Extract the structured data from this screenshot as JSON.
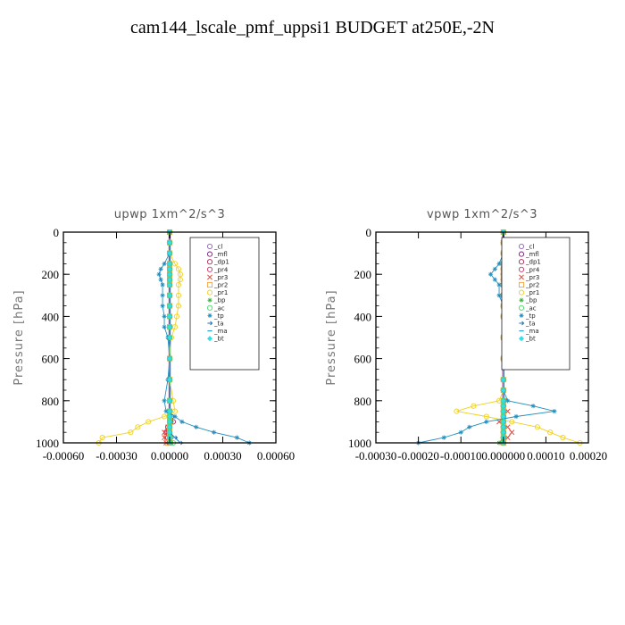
{
  "title": "cam144_lscale_pmf_uppsi1  BUDGET at250E,-2N",
  "chart_data": [
    {
      "type": "line",
      "title": "upwp   1xm^2/s^3",
      "ylabel": "Pressure [hPa]",
      "ylim": [
        1000,
        0
      ],
      "xlim": [
        -0.0006,
        0.0006
      ],
      "y_ticks": [
        0,
        200,
        400,
        600,
        800,
        1000
      ],
      "y_tick_labels": [
        "0",
        "200",
        "400",
        "600",
        "800",
        "1000"
      ],
      "x_ticks": [
        -0.0006,
        -0.0003,
        0.0,
        0.0003,
        0.0006
      ],
      "x_tick_labels": [
        "-0.00060",
        "-0.00030",
        "0.00000",
        "0.00030",
        "0.00060"
      ],
      "legend_position": "top-right",
      "pressure": [
        0,
        50,
        100,
        150,
        175,
        200,
        225,
        250,
        300,
        350,
        400,
        450,
        500,
        600,
        700,
        800,
        850,
        875,
        900,
        925,
        950,
        975,
        1000
      ],
      "series": [
        {
          "name": "_cl",
          "color": "#8b5fbf",
          "marker": "circle",
          "values": [
            0,
            0,
            0,
            0,
            0,
            0,
            0,
            0,
            0,
            0,
            0,
            0,
            0,
            0,
            0,
            0,
            0,
            0,
            0,
            0,
            0,
            0,
            0
          ]
        },
        {
          "name": "_mfl",
          "color": "#7a1f6f",
          "marker": "circle",
          "values": [
            0,
            0,
            0,
            0,
            0,
            0,
            0,
            0,
            0,
            0,
            0,
            0,
            0,
            0,
            0,
            0,
            0,
            0,
            0,
            0,
            0,
            0,
            0
          ]
        },
        {
          "name": "_dp1",
          "color": "#b0245a",
          "marker": "circle",
          "values": [
            0,
            0,
            0,
            0,
            0,
            0,
            0,
            0,
            0,
            0,
            0,
            0,
            0,
            0,
            0,
            0,
            0,
            1e-05,
            2e-05,
            -1e-05,
            -2e-05,
            -1e-05,
            0
          ]
        },
        {
          "name": "_pr4",
          "color": "#d0306a",
          "marker": "circle",
          "values": [
            0,
            0,
            0,
            0,
            0,
            0,
            0,
            0,
            0,
            0,
            0,
            0,
            0,
            0,
            0,
            0,
            0,
            0,
            0,
            0,
            0,
            0,
            0
          ]
        },
        {
          "name": "_pr3",
          "color": "#e64a3a",
          "marker": "cross",
          "values": [
            0,
            0,
            0,
            0,
            0,
            0,
            0,
            0,
            0,
            0,
            0,
            0,
            0,
            0,
            0,
            0,
            0,
            0,
            0,
            -1e-05,
            -3e-05,
            -3e-05,
            -2e-05
          ]
        },
        {
          "name": "_pr2",
          "color": "#f4a340",
          "marker": "square",
          "values": [
            0,
            0,
            0,
            0,
            0,
            0,
            0,
            0,
            0,
            0,
            0,
            0,
            0,
            0,
            0,
            0,
            0,
            0,
            0,
            0,
            0,
            0,
            -1e-05
          ]
        },
        {
          "name": "_pr1",
          "color": "#f0d020",
          "marker": "circle",
          "values": [
            0,
            0,
            0,
            3e-05,
            5e-05,
            6e-05,
            6e-05,
            5e-05,
            5e-05,
            5e-05,
            4e-05,
            3e-05,
            1e-05,
            0,
            0,
            2e-05,
            3e-05,
            -3e-05,
            -0.00012,
            -0.00018,
            -0.00022,
            -0.00038,
            -0.0004
          ]
        },
        {
          "name": "_bp",
          "color": "#3fb03f",
          "marker": "star",
          "values": [
            0,
            0,
            0,
            0,
            0,
            0,
            0,
            0,
            0,
            0,
            0,
            0,
            0,
            0,
            0,
            0,
            0,
            0,
            1e-05,
            0,
            0,
            1e-05,
            1e-05
          ]
        },
        {
          "name": "_ac",
          "color": "#40e060",
          "marker": "circle",
          "values": [
            0,
            0,
            0,
            0,
            0,
            0,
            0,
            0,
            0,
            0,
            0,
            0,
            0,
            0,
            0,
            0,
            0,
            0,
            0,
            0,
            0,
            0,
            2e-05
          ]
        },
        {
          "name": "_tp",
          "color": "#1f8fc0",
          "marker": "star",
          "values": [
            0,
            0,
            0,
            -3e-05,
            -5e-05,
            -6e-05,
            -5e-05,
            -4e-05,
            -4e-05,
            -4e-05,
            -3e-05,
            -3e-05,
            -1e-05,
            0,
            -1e-05,
            -3e-05,
            -2e-05,
            3e-05,
            7e-05,
            0.00015,
            0.00025,
            0.00038,
            0.00045
          ]
        },
        {
          "name": "_ta",
          "color": "#1a6fb0",
          "marker": "arrow",
          "values": [
            0,
            0,
            0,
            0,
            0,
            0,
            0,
            0,
            0,
            0,
            0,
            0,
            0,
            0,
            0,
            0,
            0,
            0,
            0,
            0,
            0,
            3e-05,
            6e-05
          ]
        },
        {
          "name": "_ma",
          "color": "#2aa0d0",
          "marker": "dash",
          "values": [
            0,
            0,
            0,
            0,
            0,
            0,
            0,
            0,
            0,
            0,
            0,
            0,
            0,
            0,
            0,
            0,
            0,
            0,
            0,
            0,
            0,
            0,
            0
          ]
        },
        {
          "name": "_bt",
          "color": "#30e0e8",
          "marker": "diamond",
          "values": [
            0,
            0,
            0,
            0,
            0,
            0,
            0,
            0,
            0,
            0,
            0,
            0,
            0,
            0,
            0,
            0,
            0,
            0,
            0,
            0,
            0,
            0,
            0
          ]
        }
      ]
    },
    {
      "type": "line",
      "title": "vpwp   1xm^2/s^3",
      "ylabel": "Pressure [hPa]",
      "ylim": [
        1000,
        0
      ],
      "xlim": [
        -0.0003,
        0.0002
      ],
      "y_ticks": [
        0,
        200,
        400,
        600,
        800,
        1000
      ],
      "y_tick_labels": [
        "0",
        "200",
        "400",
        "600",
        "800",
        "1000"
      ],
      "x_ticks": [
        -0.0003,
        -0.0002,
        -0.0001,
        0.0,
        0.0001,
        0.0002
      ],
      "x_tick_labels": [
        "-0.00030",
        "-0.00020",
        "-0.00010",
        "0.000000",
        "0.00010",
        "0.00020"
      ],
      "legend_position": "top-right",
      "pressure": [
        0,
        50,
        100,
        150,
        175,
        200,
        225,
        250,
        300,
        350,
        400,
        500,
        600,
        700,
        750,
        800,
        825,
        850,
        875,
        900,
        925,
        950,
        975,
        1000
      ],
      "series": [
        {
          "name": "_cl",
          "color": "#8b5fbf",
          "marker": "circle",
          "values": [
            0,
            0,
            0,
            0,
            0,
            0,
            0,
            0,
            0,
            0,
            0,
            0,
            0,
            0,
            0,
            0,
            0,
            0,
            0,
            0,
            0,
            0,
            0,
            0
          ]
        },
        {
          "name": "_mfl",
          "color": "#7a1f6f",
          "marker": "circle",
          "values": [
            0,
            0,
            0,
            0,
            0,
            0,
            0,
            0,
            0,
            0,
            0,
            0,
            0,
            0,
            0,
            0,
            0,
            0,
            0,
            0,
            0,
            0,
            0,
            0
          ]
        },
        {
          "name": "_dp1",
          "color": "#b0245a",
          "marker": "circle",
          "values": [
            0,
            0,
            0,
            0,
            0,
            0,
            0,
            0,
            0,
            0,
            0,
            0,
            0,
            0,
            0,
            0,
            0,
            0,
            0,
            0,
            0,
            0,
            0,
            0
          ]
        },
        {
          "name": "_pr4",
          "color": "#d0306a",
          "marker": "circle",
          "values": [
            0,
            0,
            0,
            0,
            0,
            0,
            0,
            0,
            0,
            0,
            0,
            0,
            0,
            0,
            0,
            0,
            0,
            0,
            0,
            0,
            0,
            0,
            0,
            0
          ]
        },
        {
          "name": "_pr3",
          "color": "#e64a3a",
          "marker": "cross",
          "values": [
            0,
            0,
            0,
            0,
            0,
            0,
            0,
            0,
            0,
            0,
            0,
            0,
            0,
            0,
            0,
            0,
            0,
            1e-05,
            0,
            -1e-05,
            1e-05,
            2e-05,
            1e-05,
            0
          ]
        },
        {
          "name": "_pr2",
          "color": "#f4a340",
          "marker": "square",
          "values": [
            0,
            0,
            0,
            0,
            0,
            0,
            0,
            0,
            0,
            0,
            0,
            0,
            0,
            0,
            0,
            0,
            0,
            0,
            0,
            0,
            0,
            0,
            0,
            0
          ]
        },
        {
          "name": "_pr1",
          "color": "#f0d020",
          "marker": "circle",
          "values": [
            0,
            0,
            0,
            1e-05,
            2e-05,
            3e-05,
            2e-05,
            1e-05,
            1e-05,
            0,
            0,
            0,
            0,
            0,
            0,
            -1e-05,
            -7e-05,
            -0.00011,
            -4e-05,
            2e-05,
            8e-05,
            0.00011,
            0.00014,
            0.00018
          ]
        },
        {
          "name": "_bp",
          "color": "#3fb03f",
          "marker": "star",
          "values": [
            0,
            0,
            0,
            0,
            0,
            0,
            0,
            0,
            0,
            0,
            0,
            0,
            0,
            0,
            0,
            0,
            0,
            0,
            0,
            0,
            0,
            0,
            0,
            -1e-05
          ]
        },
        {
          "name": "_ac",
          "color": "#40e060",
          "marker": "circle",
          "values": [
            0,
            0,
            0,
            0,
            0,
            0,
            0,
            0,
            0,
            0,
            0,
            0,
            0,
            0,
            0,
            0,
            0,
            0,
            0,
            0,
            0,
            0,
            0,
            0
          ]
        },
        {
          "name": "_tp",
          "color": "#1f8fc0",
          "marker": "star",
          "values": [
            0,
            0,
            0,
            -1e-05,
            -2e-05,
            -3e-05,
            -2e-05,
            -1e-05,
            -1e-05,
            0,
            0,
            0,
            0,
            0,
            0,
            1e-05,
            7e-05,
            0.00012,
            3e-05,
            -4e-05,
            -8e-05,
            -0.0001,
            -0.00014,
            -0.0002
          ]
        },
        {
          "name": "_ta",
          "color": "#1a6fb0",
          "marker": "arrow",
          "values": [
            0,
            0,
            0,
            0,
            0,
            0,
            0,
            0,
            0,
            0,
            0,
            0,
            0,
            0,
            0,
            0,
            0,
            0,
            0,
            0,
            0,
            0,
            0,
            0
          ]
        },
        {
          "name": "_ma",
          "color": "#2aa0d0",
          "marker": "dash",
          "values": [
            0,
            0,
            0,
            0,
            0,
            0,
            0,
            0,
            0,
            0,
            0,
            0,
            0,
            0,
            0,
            0,
            0,
            0,
            0,
            0,
            0,
            0,
            0,
            0
          ]
        },
        {
          "name": "_bt",
          "color": "#30e0e8",
          "marker": "diamond",
          "values": [
            0,
            0,
            0,
            0,
            0,
            0,
            0,
            0,
            0,
            0,
            0,
            0,
            0,
            0,
            0,
            0,
            0,
            0,
            0,
            0,
            0,
            0,
            0,
            0
          ]
        }
      ]
    }
  ]
}
